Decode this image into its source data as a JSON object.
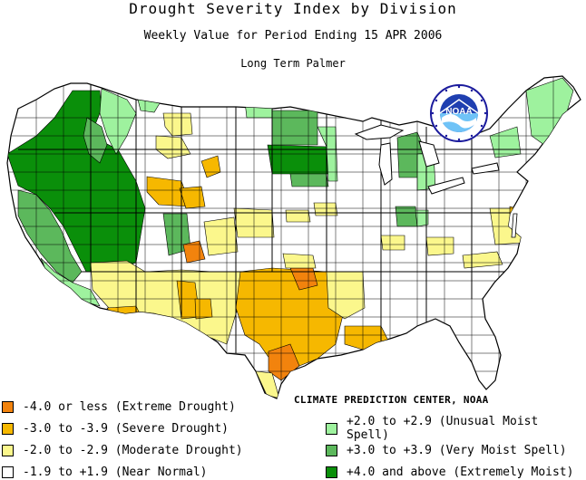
{
  "header": {
    "title": "Drought Severity Index by Division",
    "subtitle": "Weekly Value for Period Ending 15 APR 2006",
    "index_name": "Long Term Palmer"
  },
  "logo": {
    "text": "NOAA",
    "icon": "noaa-logo-icon"
  },
  "credit": "CLIMATE PREDICTION CENTER, NOAA",
  "colors": {
    "extreme_drought": "#f2830d",
    "severe_drought": "#f6b800",
    "moderate_drought": "#fbf78c",
    "near_normal": "#ffffff",
    "unusual_moist": "#9ef29e",
    "very_moist": "#5cb85c",
    "extremely_moist": "#0a8f0a",
    "water": "#ffffff",
    "border": "#000000"
  },
  "legend": {
    "left": [
      {
        "label": "-4.0 or less (Extreme Drought)",
        "color": "#f2830d"
      },
      {
        "label": "-3.0 to -3.9 (Severe Drought)",
        "color": "#f6b800"
      },
      {
        "label": "-2.0 to -2.9 (Moderate Drought)",
        "color": "#fbf78c"
      },
      {
        "label": "-1.9 to +1.9 (Near Normal)",
        "color": "#ffffff"
      }
    ],
    "right": [
      {
        "label": "+2.0 to +2.9 (Unusual Moist Spell)",
        "color": "#9ef29e"
      },
      {
        "label": "+3.0 to +3.9 (Very Moist Spell)",
        "color": "#5cb85c"
      },
      {
        "label": "+4.0 and above (Extremely Moist)",
        "color": "#0a8f0a"
      }
    ]
  }
}
